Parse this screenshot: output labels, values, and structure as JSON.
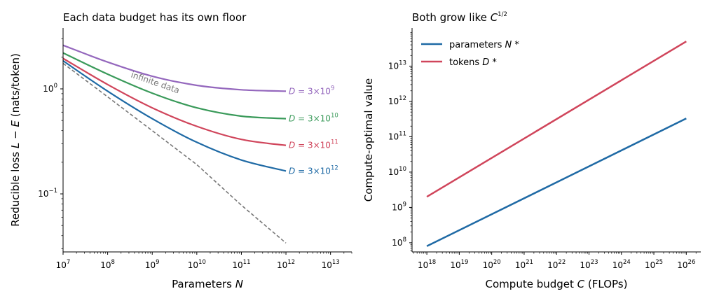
{
  "chart_data": [
    {
      "type": "line",
      "title": "Each data budget has its own floor",
      "xlabel_prefix": "Parameters ",
      "xlabel_var": "N",
      "ylabel_prefix": "Reducible loss ",
      "ylabel_math": "L − E",
      "ylabel_suffix": " (nats/token)",
      "xscale": "log",
      "yscale": "log",
      "xlim": [
        10000000.0,
        30000000000000.0
      ],
      "ylim": [
        0.028,
        3.8
      ],
      "xticks": [
        {
          "base": "10",
          "exp": "7"
        },
        {
          "base": "10",
          "exp": "8"
        },
        {
          "base": "10",
          "exp": "9"
        },
        {
          "base": "10",
          "exp": "10"
        },
        {
          "base": "10",
          "exp": "11"
        },
        {
          "base": "10",
          "exp": "12"
        },
        {
          "base": "10",
          "exp": "13"
        }
      ],
      "yticks": [
        {
          "base": "10",
          "exp": "−1"
        },
        {
          "base": "10",
          "exp": "0"
        }
      ],
      "annotation": "infinite data",
      "reference": {
        "name": "infinite data",
        "style": "dashed",
        "color": "#777777",
        "x": [
          10000000.0,
          100000000.0,
          1000000000.0,
          10000000000.0,
          100000000000.0,
          1000000000000.0
        ],
        "y": [
          1.75,
          0.84,
          0.4,
          0.19,
          0.078,
          0.034
        ]
      },
      "series": [
        {
          "label_prefix": "D = 3×10",
          "label_exp": "9",
          "color": "#9467bd",
          "x": [
            10000000.0,
            100000000.0,
            1000000000.0,
            10000000000.0,
            100000000000.0,
            1000000000000.0
          ],
          "y": [
            2.6,
            1.8,
            1.32,
            1.08,
            0.98,
            0.95
          ]
        },
        {
          "label_prefix": "D = 3×10",
          "label_exp": "10",
          "color": "#3a9a5a",
          "x": [
            10000000.0,
            100000000.0,
            1000000000.0,
            10000000000.0,
            100000000000.0,
            1000000000000.0
          ],
          "y": [
            2.2,
            1.38,
            0.91,
            0.66,
            0.55,
            0.52
          ]
        },
        {
          "label_prefix": "D = 3×10",
          "label_exp": "11",
          "color": "#d0455b",
          "x": [
            10000000.0,
            100000000.0,
            1000000000.0,
            10000000000.0,
            100000000000.0,
            1000000000000.0
          ],
          "y": [
            1.95,
            1.1,
            0.66,
            0.44,
            0.33,
            0.29
          ]
        },
        {
          "label_prefix": "D = 3×10",
          "label_exp": "12",
          "color": "#1f6aa5",
          "x": [
            10000000.0,
            100000000.0,
            1000000000.0,
            10000000000.0,
            100000000000.0,
            1000000000000.0
          ],
          "y": [
            1.85,
            0.95,
            0.52,
            0.31,
            0.21,
            0.165
          ]
        }
      ]
    },
    {
      "type": "line",
      "title_prefix": "Both grow like ",
      "title_var": "C",
      "title_exp": "1/2",
      "xlabel_prefix": "Compute budget ",
      "xlabel_var": "C",
      "xlabel_suffix": " (FLOPs)",
      "ylabel": "Compute-optimal value",
      "xscale": "log",
      "yscale": "log",
      "xlim": [
        3.5e+17,
        2.8e+26
      ],
      "ylim": [
        55000000.0,
        120000000000000.0
      ],
      "xticks": [
        {
          "base": "10",
          "exp": "18"
        },
        {
          "base": "10",
          "exp": "19"
        },
        {
          "base": "10",
          "exp": "20"
        },
        {
          "base": "10",
          "exp": "21"
        },
        {
          "base": "10",
          "exp": "22"
        },
        {
          "base": "10",
          "exp": "23"
        },
        {
          "base": "10",
          "exp": "24"
        },
        {
          "base": "10",
          "exp": "25"
        },
        {
          "base": "10",
          "exp": "26"
        }
      ],
      "yticks": [
        {
          "base": "10",
          "exp": "8"
        },
        {
          "base": "10",
          "exp": "9"
        },
        {
          "base": "10",
          "exp": "10"
        },
        {
          "base": "10",
          "exp": "11"
        },
        {
          "base": "10",
          "exp": "12"
        },
        {
          "base": "10",
          "exp": "13"
        }
      ],
      "legend_position": "upper-left",
      "series": [
        {
          "name": "parameters",
          "name_var": "N",
          "color": "#1f6aa5",
          "x": [
            1e+18,
            1e+26
          ],
          "y": [
            80000000.0,
            330000000000.0
          ]
        },
        {
          "name": "tokens",
          "name_var": "D",
          "color": "#d0455b",
          "x": [
            1e+18,
            1e+26
          ],
          "y": [
            2000000000.0,
            50000000000000.0
          ]
        }
      ]
    }
  ]
}
